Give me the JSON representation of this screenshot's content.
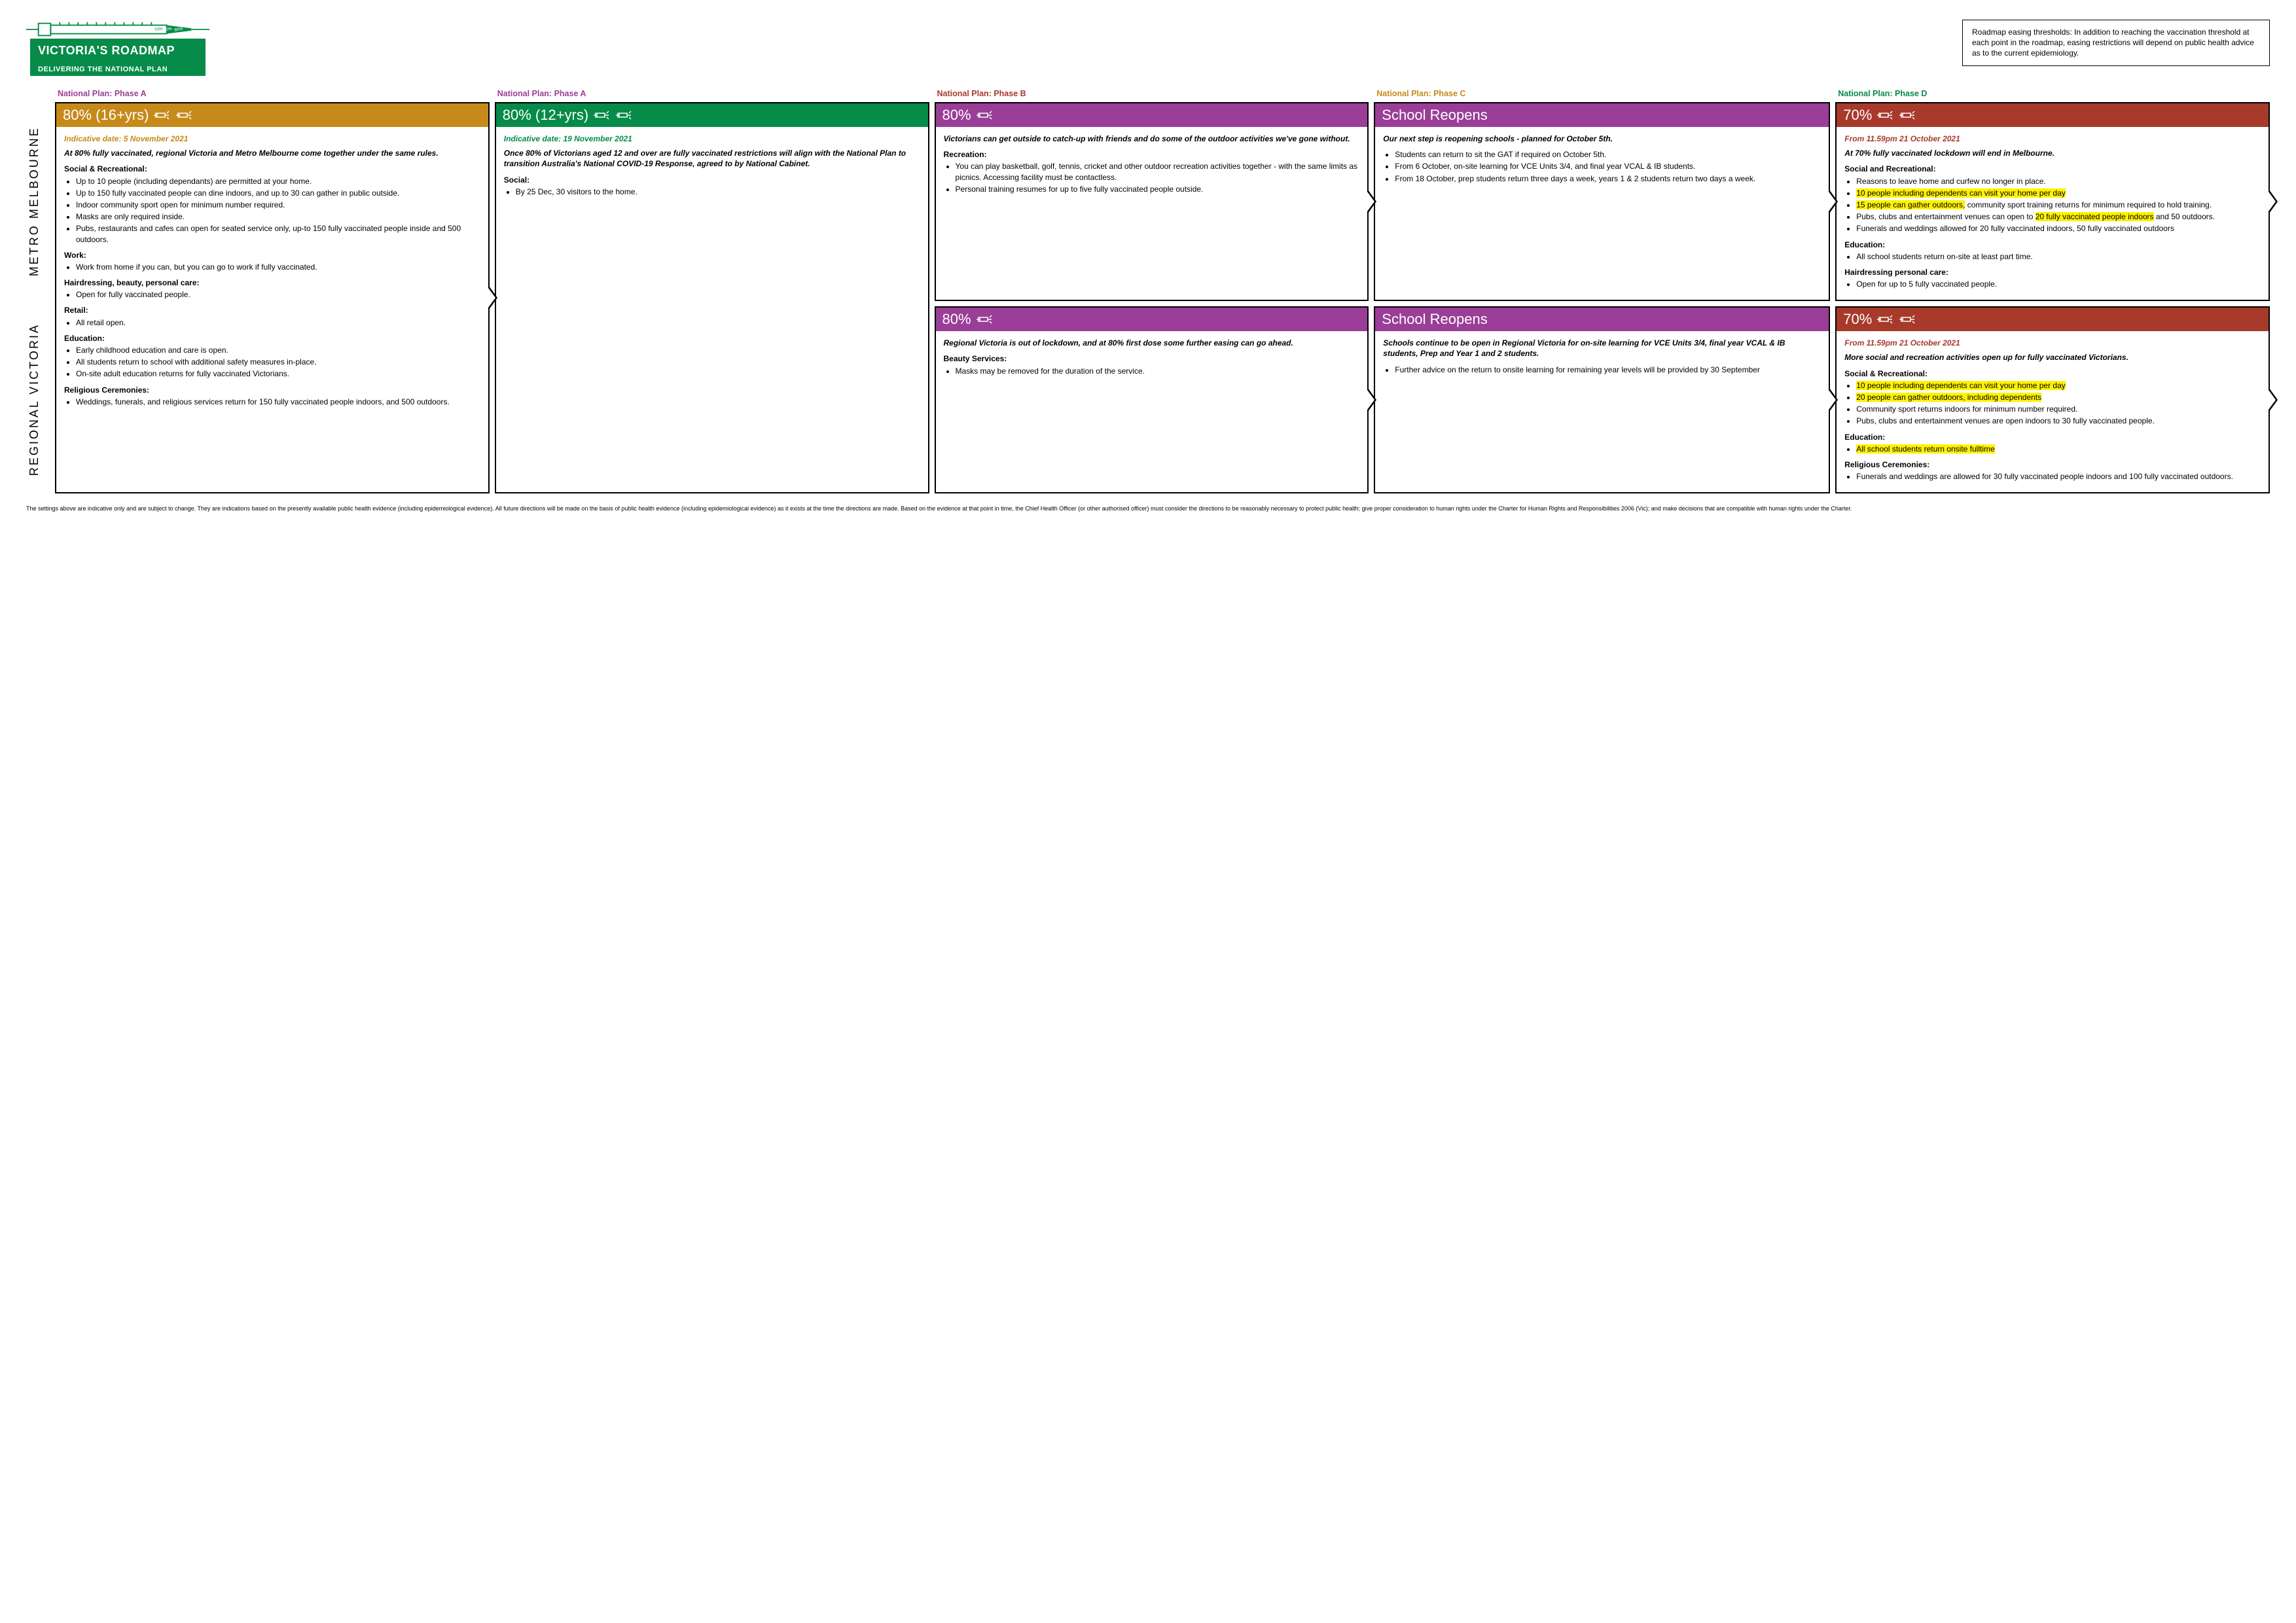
{
  "header": {
    "title": "VICTORIA'S ROADMAP",
    "subtitle": "DELIVERING THE NATIONAL PLAN",
    "disclaimer": "Roadmap easing thresholds: In addition to reaching the vaccination threshold at each point in the roadmap, easing restrictions will depend on public health advice as to the current epidemiology."
  },
  "colors": {
    "phaseA": "#9a3e97",
    "phaseB": "#a73a2b",
    "phaseC": "#c68a1b",
    "phaseD": "#068b48",
    "phaseA_label": "#9a3e97",
    "phaseB_label": "#a73a2b",
    "phaseC_label": "#c68a1b",
    "phaseD_label": "#068b48",
    "highlight": "#fff200"
  },
  "phases": {
    "A1": "National Plan: Phase A",
    "A2": "National Plan: Phase A",
    "B": "National Plan: Phase B",
    "C": "National Plan: Phase C",
    "D": "National Plan: Phase D"
  },
  "sideLabels": {
    "metro": "METRO MELBOURNE",
    "regional": "REGIONAL VICTORIA"
  },
  "cards": {
    "metroA1": {
      "header": "80%",
      "lead": "Victorians can get outside to catch-up with friends and do some of the outdoor activities we've gone without.",
      "sections": [
        {
          "head": "Recreation:",
          "items": [
            {
              "t": "You can play basketball, golf, tennis, cricket and other outdoor recreation activities together - with the same limits as picnics. Accessing facility must be contactless."
            },
            {
              "t": "Personal training resumes for up to five fully vaccinated people outside."
            }
          ]
        }
      ]
    },
    "metroA2": {
      "header": "School Reopens",
      "lead": "Our next step is reopening schools - planned for October 5th.",
      "sections": [
        {
          "head": "",
          "items": [
            {
              "t": "Students can return to sit the GAT if required on October 5th."
            },
            {
              "t": "From 6 October, on-site learning for VCE Units 3/4, and final year VCAL & IB students."
            },
            {
              "t": "From 18 October, prep students return three days a week, years 1 & 2 students return two days a week."
            }
          ]
        }
      ]
    },
    "metroB": {
      "header": "70%",
      "date": "From 11.59pm 21 October 2021",
      "lead": "At 70% fully vaccinated lockdown will end in Melbourne.",
      "sections": [
        {
          "head": "Social and Recreational:",
          "items": [
            {
              "t": "Reasons to leave home and curfew no longer in place."
            },
            {
              "t": "10 people including dependents can visit your home per day",
              "hl": true
            },
            {
              "t": "15 people can gather outdoors,",
              "hl": true,
              "tail": " community sport training returns for minimum required to hold training."
            },
            {
              "t": "Pubs, clubs and entertainment venues can open to ",
              "hlmid": "20 fully vaccinated people indoors",
              "tail": " and 50 outdoors."
            },
            {
              "t": "Funerals and weddings allowed for 20 fully vaccinated indoors, 50 fully vaccinated outdoors"
            }
          ]
        },
        {
          "head": "Education:",
          "items": [
            {
              "t": "All school students return on-site at least part time."
            }
          ]
        },
        {
          "head": "Hairdressing personal care:",
          "items": [
            {
              "t": "Open for up to 5 fully vaccinated people."
            }
          ]
        }
      ]
    },
    "colC": {
      "header": "80% (16+yrs)",
      "date": "Indicative date: 5 November 2021",
      "lead": "At 80% fully vaccinated, regional Victoria and Metro Melbourne come together under the same rules.",
      "sections": [
        {
          "head": "Social & Recreational:",
          "items": [
            {
              "t": "Up to 10 people (including dependants) are permitted at your home."
            },
            {
              "t": "Up to 150 fully vaccinated people can dine indoors, and up to 30 can gather in public outside."
            },
            {
              "t": "Indoor community sport open for minimum number required."
            },
            {
              "t": "Masks are only required inside."
            },
            {
              "t": "Pubs, restaurants and cafes can open for seated service only, up-to 150 fully vaccinated people inside and 500 outdoors."
            }
          ]
        },
        {
          "head": "Work:",
          "items": [
            {
              "t": "Work from home if you can, but you can go to work if fully vaccinated."
            }
          ]
        },
        {
          "head": "Hairdressing, beauty, personal care:",
          "items": [
            {
              "t": "Open for fully vaccinated people."
            }
          ]
        },
        {
          "head": "Retail:",
          "items": [
            {
              "t": "All retail open."
            }
          ]
        },
        {
          "head": "Education:",
          "items": [
            {
              "t": "Early childhood education and care is open."
            },
            {
              "t": "All students return to school with additional safety measures in-place."
            },
            {
              "t": "On-site adult education returns for fully vaccinated Victorians."
            }
          ]
        },
        {
          "head": "Religious Ceremonies:",
          "items": [
            {
              "t": "Weddings, funerals, and religious services return for 150 fully vaccinated people indoors, and 500 outdoors."
            }
          ]
        }
      ]
    },
    "colD": {
      "header": "80% (12+yrs)",
      "date": "Indicative date: 19 November 2021",
      "lead": "Once 80% of Victorians aged 12 and over are fully vaccinated restrictions will align with the National Plan to transition Australia's National COVID-19 Response, agreed to by National Cabinet.",
      "sections": [
        {
          "head": "Social:",
          "items": [
            {
              "t": "By 25 Dec, 30 visitors to the home."
            }
          ]
        }
      ]
    },
    "regA1": {
      "header": "80%",
      "lead": "Regional Victoria is out of lockdown, and at 80% first dose some further easing can go ahead.",
      "sections": [
        {
          "head": "Beauty Services:",
          "items": [
            {
              "t": "Masks may be removed for the duration of the service."
            }
          ]
        }
      ]
    },
    "regA2": {
      "header": "School Reopens",
      "lead": "Schools continue to be open in Regional Victoria for on-site learning for VCE Units 3/4, final year VCAL & IB students, Prep and Year 1 and 2 students.",
      "sections": [
        {
          "head": "",
          "items": [
            {
              "t": "Further advice on the return to onsite learning for remaining year levels will be provided by 30 September"
            }
          ]
        }
      ]
    },
    "regB": {
      "header": "70%",
      "date": "From 11.59pm 21 October 2021",
      "lead": "More social and recreation activities open up for fully vaccinated Victorians.",
      "sections": [
        {
          "head": "Social & Recreational:",
          "items": [
            {
              "t": "10 people including dependents can visit your home per day",
              "hl": true
            },
            {
              "t": "20 people can gather outdoors, including dependents",
              "hl": true
            },
            {
              "t": "Community sport returns indoors for minimum number required."
            },
            {
              "t": "Pubs, clubs and entertainment venues are open indoors to 30 fully vaccinated people."
            }
          ]
        },
        {
          "head": "Education:",
          "items": [
            {
              "t": "All school students return onsite fulltime",
              "hl": true
            }
          ]
        },
        {
          "head": "Religious Ceremonies:",
          "items": [
            {
              "t": "Funerals and weddings are allowed for 30 fully vaccinated people indoors and 100 fully vaccinated outdoors."
            }
          ]
        }
      ]
    }
  },
  "footer": "The settings above are indicative only and are subject to change. They are indications based on the presently available public health evidence (including epidemiological evidence). All future directions will be made on the basis of public health evidence (including epidemiological evidence) as it exists at the time the directions are made. Based on the evidence at that point in time, the Chief Health Officer (or other authorised officer) must consider the directions to be reasonably necessary to protect public health; give proper consideration to human rights under the Charter for Human Rights and Responsibilities 2006 (Vic); and make decisions that are compatible with human rights under the Charter."
}
